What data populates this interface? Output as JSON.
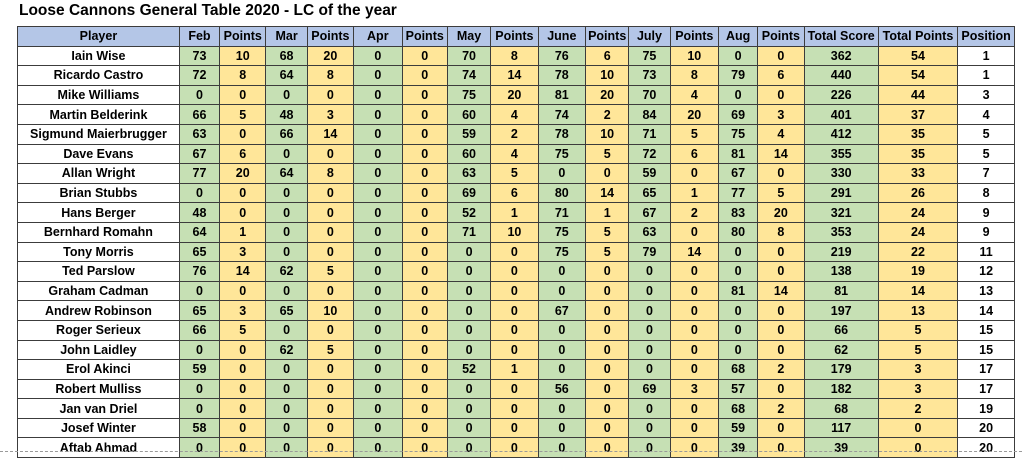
{
  "title": "Loose Cannons General Table 2020 - LC of the year",
  "colors": {
    "header": "#b4c6e7",
    "score_green": "#c6e0b4",
    "points_yellow": "#ffe699",
    "white": "#ffffff"
  },
  "table": {
    "columns": [
      {
        "label": "Player",
        "type": "player"
      },
      {
        "label": "Feb",
        "type": "month"
      },
      {
        "label": "Points",
        "type": "points"
      },
      {
        "label": "Mar",
        "type": "month"
      },
      {
        "label": "Points",
        "type": "points"
      },
      {
        "label": "Apr",
        "type": "month"
      },
      {
        "label": "Points",
        "type": "points"
      },
      {
        "label": "May",
        "type": "month"
      },
      {
        "label": "Points",
        "type": "points"
      },
      {
        "label": "June",
        "type": "month"
      },
      {
        "label": "Points",
        "type": "points"
      },
      {
        "label": "July",
        "type": "month"
      },
      {
        "label": "Points",
        "type": "points"
      },
      {
        "label": "Aug",
        "type": "month"
      },
      {
        "label": "Points",
        "type": "points"
      },
      {
        "label": "Total Score",
        "type": "total-score"
      },
      {
        "label": "Total Points",
        "type": "total-points"
      },
      {
        "label": "Position",
        "type": "position"
      }
    ],
    "rows": [
      [
        "Iain Wise",
        "73",
        "10",
        "68",
        "20",
        "0",
        "0",
        "70",
        "8",
        "76",
        "6",
        "75",
        "10",
        "0",
        "0",
        "362",
        "54",
        "1"
      ],
      [
        "Ricardo Castro",
        "72",
        "8",
        "64",
        "8",
        "0",
        "0",
        "74",
        "14",
        "78",
        "10",
        "73",
        "8",
        "79",
        "6",
        "440",
        "54",
        "1"
      ],
      [
        "Mike Williams",
        "0",
        "0",
        "0",
        "0",
        "0",
        "0",
        "75",
        "20",
        "81",
        "20",
        "70",
        "4",
        "0",
        "0",
        "226",
        "44",
        "3"
      ],
      [
        "Martin Belderink",
        "66",
        "5",
        "48",
        "3",
        "0",
        "0",
        "60",
        "4",
        "74",
        "2",
        "84",
        "20",
        "69",
        "3",
        "401",
        "37",
        "4"
      ],
      [
        "Sigmund Maierbrugger",
        "63",
        "0",
        "66",
        "14",
        "0",
        "0",
        "59",
        "2",
        "78",
        "10",
        "71",
        "5",
        "75",
        "4",
        "412",
        "35",
        "5"
      ],
      [
        "Dave Evans",
        "67",
        "6",
        "0",
        "0",
        "0",
        "0",
        "60",
        "4",
        "75",
        "5",
        "72",
        "6",
        "81",
        "14",
        "355",
        "35",
        "5"
      ],
      [
        "Allan Wright",
        "77",
        "20",
        "64",
        "8",
        "0",
        "0",
        "63",
        "5",
        "0",
        "0",
        "59",
        "0",
        "67",
        "0",
        "330",
        "33",
        "7"
      ],
      [
        "Brian Stubbs",
        "0",
        "0",
        "0",
        "0",
        "0",
        "0",
        "69",
        "6",
        "80",
        "14",
        "65",
        "1",
        "77",
        "5",
        "291",
        "26",
        "8"
      ],
      [
        "Hans Berger",
        "48",
        "0",
        "0",
        "0",
        "0",
        "0",
        "52",
        "1",
        "71",
        "1",
        "67",
        "2",
        "83",
        "20",
        "321",
        "24",
        "9"
      ],
      [
        "Bernhard Romahn",
        "64",
        "1",
        "0",
        "0",
        "0",
        "0",
        "71",
        "10",
        "75",
        "5",
        "63",
        "0",
        "80",
        "8",
        "353",
        "24",
        "9"
      ],
      [
        "Tony Morris",
        "65",
        "3",
        "0",
        "0",
        "0",
        "0",
        "0",
        "0",
        "75",
        "5",
        "79",
        "14",
        "0",
        "0",
        "219",
        "22",
        "11"
      ],
      [
        "Ted Parslow",
        "76",
        "14",
        "62",
        "5",
        "0",
        "0",
        "0",
        "0",
        "0",
        "0",
        "0",
        "0",
        "0",
        "0",
        "138",
        "19",
        "12"
      ],
      [
        "Graham Cadman",
        "0",
        "0",
        "0",
        "0",
        "0",
        "0",
        "0",
        "0",
        "0",
        "0",
        "0",
        "0",
        "81",
        "14",
        "81",
        "14",
        "13"
      ],
      [
        "Andrew Robinson",
        "65",
        "3",
        "65",
        "10",
        "0",
        "0",
        "0",
        "0",
        "67",
        "0",
        "0",
        "0",
        "0",
        "0",
        "197",
        "13",
        "14"
      ],
      [
        "Roger Serieux",
        "66",
        "5",
        "0",
        "0",
        "0",
        "0",
        "0",
        "0",
        "0",
        "0",
        "0",
        "0",
        "0",
        "0",
        "66",
        "5",
        "15"
      ],
      [
        "John Laidley",
        "0",
        "0",
        "62",
        "5",
        "0",
        "0",
        "0",
        "0",
        "0",
        "0",
        "0",
        "0",
        "0",
        "0",
        "62",
        "5",
        "15"
      ],
      [
        "Erol Akinci",
        "59",
        "0",
        "0",
        "0",
        "0",
        "0",
        "52",
        "1",
        "0",
        "0",
        "0",
        "0",
        "68",
        "2",
        "179",
        "3",
        "17"
      ],
      [
        "Robert Mulliss",
        "0",
        "0",
        "0",
        "0",
        "0",
        "0",
        "0",
        "0",
        "56",
        "0",
        "69",
        "3",
        "57",
        "0",
        "182",
        "3",
        "17"
      ],
      [
        "Jan van Driel",
        "0",
        "0",
        "0",
        "0",
        "0",
        "0",
        "0",
        "0",
        "0",
        "0",
        "0",
        "0",
        "68",
        "2",
        "68",
        "2",
        "19"
      ],
      [
        "Josef Winter",
        "58",
        "0",
        "0",
        "0",
        "0",
        "0",
        "0",
        "0",
        "0",
        "0",
        "0",
        "0",
        "59",
        "0",
        "117",
        "0",
        "20"
      ],
      [
        "Aftab Ahmad",
        "0",
        "0",
        "0",
        "0",
        "0",
        "0",
        "0",
        "0",
        "0",
        "0",
        "0",
        "0",
        "39",
        "0",
        "39",
        "0",
        "20"
      ]
    ]
  }
}
